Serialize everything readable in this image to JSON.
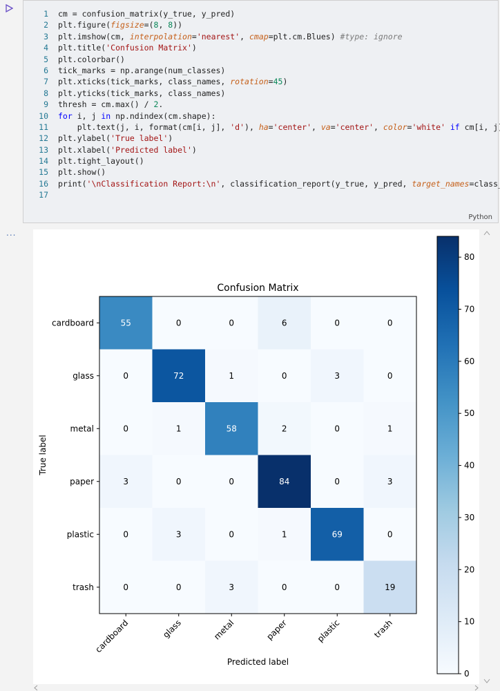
{
  "cell": {
    "language": "Python",
    "lines": [
      {
        "n": "1",
        "code": "cm = confusion_matrix(y_true, y_pred)"
      },
      {
        "n": "2",
        "code": "plt.figure(figsize=(8, 8))"
      },
      {
        "n": "3",
        "code": "plt.imshow(cm, interpolation='nearest', cmap=plt.cm.Blues) #type: ignore"
      },
      {
        "n": "4",
        "code": "plt.title('Confusion Matrix')"
      },
      {
        "n": "5",
        "code": "plt.colorbar()"
      },
      {
        "n": "6",
        "code": "tick_marks = np.arange(num_classes)"
      },
      {
        "n": "7",
        "code": "plt.xticks(tick_marks, class_names, rotation=45)"
      },
      {
        "n": "8",
        "code": "plt.yticks(tick_marks, class_names)"
      },
      {
        "n": "9",
        "code": "thresh = cm.max() / 2."
      },
      {
        "n": "10",
        "code": "for i, j in np.ndindex(cm.shape):"
      },
      {
        "n": "11",
        "code": "    plt.text(j, i, format(cm[i, j], 'd'), ha='center', va='center', color='white' if cm[i, j] > t"
      },
      {
        "n": "12",
        "code": "plt.ylabel('True label')"
      },
      {
        "n": "13",
        "code": "plt.xlabel('Predicted label')"
      },
      {
        "n": "14",
        "code": "plt.tight_layout()"
      },
      {
        "n": "15",
        "code": "plt.show()"
      },
      {
        "n": "16",
        "code": "print('\\nClassification Report:\\n', classification_report(y_true, y_pred, target_names=class_nam"
      },
      {
        "n": "17",
        "code": ""
      }
    ]
  },
  "output": {
    "menu_label": "..."
  },
  "chart_data": {
    "type": "heatmap",
    "title": "Confusion Matrix",
    "xlabel": "Predicted label",
    "ylabel": "True label",
    "categories": [
      "cardboard",
      "glass",
      "metal",
      "paper",
      "plastic",
      "trash"
    ],
    "matrix": [
      [
        55,
        0,
        0,
        6,
        0,
        0
      ],
      [
        0,
        72,
        1,
        0,
        3,
        0
      ],
      [
        0,
        1,
        58,
        2,
        0,
        1
      ],
      [
        3,
        0,
        0,
        84,
        0,
        3
      ],
      [
        0,
        3,
        0,
        1,
        69,
        0
      ],
      [
        0,
        0,
        3,
        0,
        0,
        19
      ]
    ],
    "threshold": 42,
    "colormap": "Blues",
    "colorbar": {
      "min": 0,
      "max": 84,
      "ticks": [
        0,
        10,
        20,
        30,
        40,
        50,
        60,
        70,
        80
      ]
    },
    "text_colors": {
      "dark": "#000000",
      "light": "#ffffff"
    }
  }
}
